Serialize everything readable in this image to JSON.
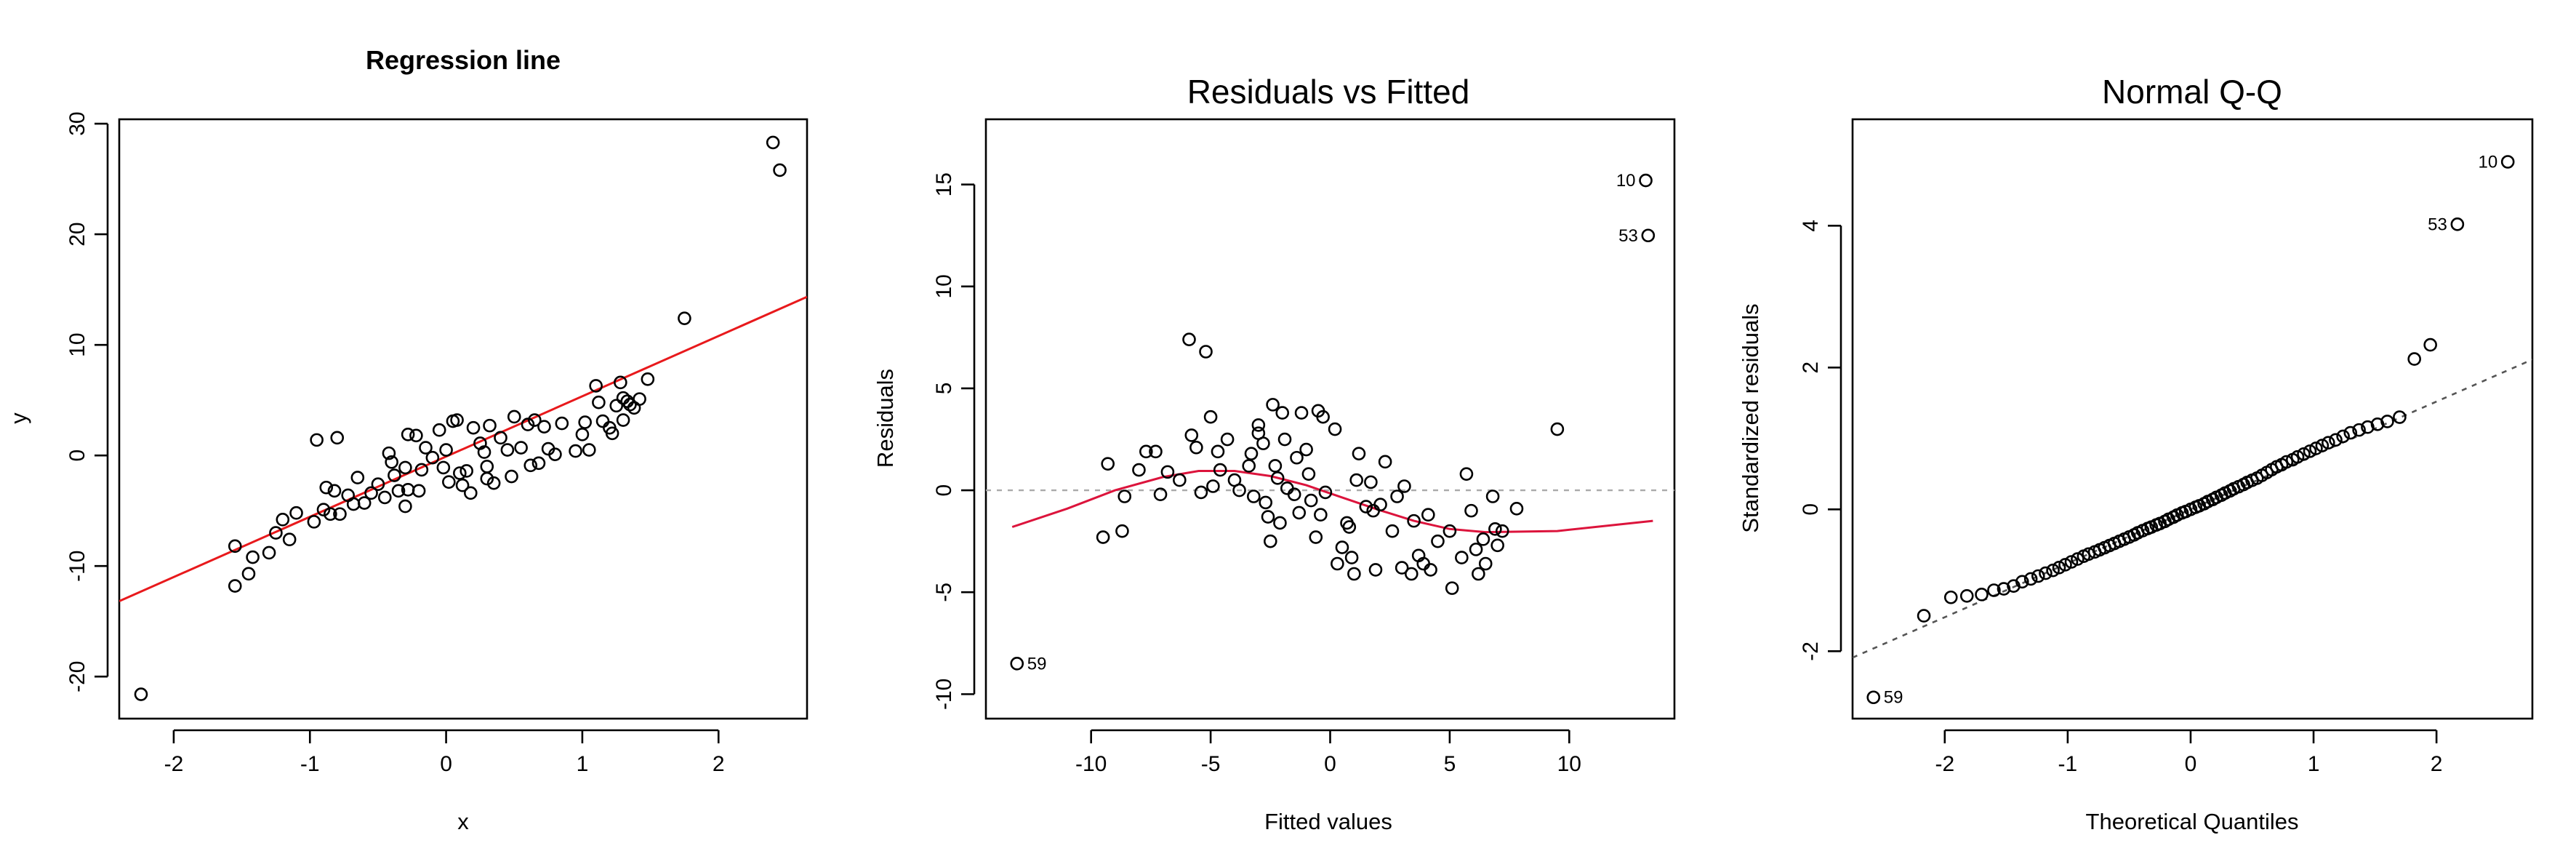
{
  "colors": {
    "regression_line": "#e8191c",
    "lowess_line": "#dc143c",
    "zero_ref": "#aaaaaa",
    "qq_ref": "#555555",
    "points": "#000000",
    "background": "#ffffff"
  },
  "chart_data": [
    {
      "type": "scatter",
      "title": "Regression line",
      "xlabel": "x",
      "ylabel": "y",
      "xlim": [
        -2.4,
        2.65
      ],
      "ylim": [
        -23.8,
        30.4
      ],
      "xticks": [
        -2,
        -1,
        0,
        1,
        2
      ],
      "yticks": [
        -20,
        -10,
        0,
        10,
        20,
        30
      ],
      "grid": false,
      "points": [
        [
          -2.24,
          -21.6
        ],
        [
          2.4,
          28.3
        ],
        [
          2.45,
          25.8
        ],
        [
          1.75,
          12.4
        ],
        [
          -1.55,
          -11.8
        ],
        [
          -1.45,
          -10.7
        ],
        [
          -1.55,
          -8.2
        ],
        [
          -1.42,
          -9.2
        ],
        [
          -1.3,
          -8.8
        ],
        [
          -1.25,
          -7.0
        ],
        [
          -1.2,
          -5.8
        ],
        [
          -1.15,
          -7.6
        ],
        [
          -1.1,
          -5.2
        ],
        [
          -0.97,
          -6.0
        ],
        [
          -0.9,
          -4.9
        ],
        [
          -0.85,
          -5.3
        ],
        [
          -0.88,
          -2.9
        ],
        [
          -0.82,
          -3.2
        ],
        [
          -0.78,
          -5.3
        ],
        [
          -0.95,
          1.4
        ],
        [
          -0.8,
          1.6
        ],
        [
          -0.72,
          -3.6
        ],
        [
          -0.65,
          -2.0
        ],
        [
          -0.6,
          -4.3
        ],
        [
          -0.55,
          -3.4
        ],
        [
          -0.5,
          -2.6
        ],
        [
          -0.45,
          -3.8
        ],
        [
          -0.4,
          -0.6
        ],
        [
          -0.42,
          0.2
        ],
        [
          -0.38,
          -1.8
        ],
        [
          -0.35,
          -3.2
        ],
        [
          -0.3,
          -4.6
        ],
        [
          -0.28,
          -3.1
        ],
        [
          -0.3,
          -1.1
        ],
        [
          -0.28,
          1.9
        ],
        [
          -0.22,
          1.8
        ],
        [
          -0.2,
          -3.2
        ],
        [
          -0.18,
          -1.3
        ],
        [
          -0.15,
          0.7
        ],
        [
          -0.1,
          -0.2
        ],
        [
          -0.05,
          2.3
        ],
        [
          -0.02,
          -1.1
        ],
        [
          0.0,
          0.5
        ],
        [
          0.02,
          -2.4
        ],
        [
          0.05,
          3.1
        ],
        [
          0.08,
          3.2
        ],
        [
          0.1,
          -1.6
        ],
        [
          0.12,
          -2.7
        ],
        [
          0.15,
          -1.4
        ],
        [
          0.18,
          -3.4
        ],
        [
          0.2,
          2.5
        ],
        [
          0.25,
          1.1
        ],
        [
          0.28,
          0.3
        ],
        [
          0.3,
          -1.0
        ],
        [
          0.3,
          -2.1
        ],
        [
          0.32,
          2.7
        ],
        [
          0.35,
          -2.5
        ],
        [
          0.4,
          1.6
        ],
        [
          0.45,
          0.5
        ],
        [
          0.48,
          -1.9
        ],
        [
          0.5,
          3.5
        ],
        [
          0.55,
          0.7
        ],
        [
          0.6,
          2.8
        ],
        [
          0.62,
          -0.9
        ],
        [
          0.65,
          3.2
        ],
        [
          0.68,
          -0.7
        ],
        [
          0.72,
          2.6
        ],
        [
          0.75,
          0.6
        ],
        [
          0.8,
          0.1
        ],
        [
          0.85,
          2.9
        ],
        [
          0.95,
          0.4
        ],
        [
          1.0,
          1.9
        ],
        [
          1.02,
          3.0
        ],
        [
          1.05,
          0.5
        ],
        [
          1.1,
          6.3
        ],
        [
          1.12,
          4.8
        ],
        [
          1.15,
          3.1
        ],
        [
          1.2,
          2.5
        ],
        [
          1.22,
          2.0
        ],
        [
          1.25,
          4.5
        ],
        [
          1.28,
          6.6
        ],
        [
          1.3,
          5.2
        ],
        [
          1.3,
          3.2
        ],
        [
          1.33,
          4.9
        ],
        [
          1.35,
          4.6
        ],
        [
          1.38,
          4.3
        ],
        [
          1.42,
          5.1
        ],
        [
          1.48,
          6.9
        ],
        [
          -0.68,
          -4.4
        ]
      ],
      "regression": {
        "intercept": -0.1,
        "slope": 5.45
      }
    },
    {
      "type": "scatter",
      "title": "Residuals vs Fitted",
      "xlabel": "Fitted values",
      "ylabel": "Residuals",
      "xlim": [
        -14.4,
        14.4
      ],
      "ylim": [
        -11.2,
        18.2
      ],
      "xticks": [
        -10,
        -5,
        0,
        5,
        10
      ],
      "yticks": [
        -10,
        -5,
        0,
        5,
        10,
        15
      ],
      "grid": false,
      "labels": [
        {
          "text": "10",
          "x": 13.2,
          "y": 15.2,
          "side": "left"
        },
        {
          "text": "53",
          "x": 13.3,
          "y": 12.5,
          "side": "left"
        },
        {
          "text": "59",
          "x": -13.1,
          "y": -8.5,
          "side": "right"
        }
      ],
      "points": [
        [
          13.2,
          15.2
        ],
        [
          13.3,
          12.5
        ],
        [
          -13.1,
          -8.5
        ],
        [
          9.5,
          3.0
        ],
        [
          -9.5,
          -2.3
        ],
        [
          -9.3,
          1.3
        ],
        [
          -8.7,
          -2.0
        ],
        [
          -8.6,
          -0.3
        ],
        [
          -8.0,
          1.0
        ],
        [
          -7.7,
          1.9
        ],
        [
          -7.3,
          1.9
        ],
        [
          -7.1,
          -0.2
        ],
        [
          -6.8,
          0.9
        ],
        [
          -6.3,
          0.5
        ],
        [
          -5.9,
          7.4
        ],
        [
          -5.8,
          2.7
        ],
        [
          -5.6,
          2.1
        ],
        [
          -5.4,
          -0.1
        ],
        [
          -5.2,
          6.8
        ],
        [
          -5.0,
          3.6
        ],
        [
          -4.9,
          0.2
        ],
        [
          -4.7,
          1.9
        ],
        [
          -4.6,
          1.0
        ],
        [
          -4.3,
          2.5
        ],
        [
          -4.0,
          0.5
        ],
        [
          -3.8,
          0.0
        ],
        [
          -3.4,
          1.2
        ],
        [
          -3.3,
          1.8
        ],
        [
          -3.2,
          -0.3
        ],
        [
          -3.0,
          3.2
        ],
        [
          -3.0,
          2.8
        ],
        [
          -2.8,
          2.3
        ],
        [
          -2.7,
          -0.6
        ],
        [
          -2.6,
          -1.3
        ],
        [
          -2.5,
          -2.5
        ],
        [
          -2.4,
          4.2
        ],
        [
          -2.3,
          1.2
        ],
        [
          -2.2,
          0.6
        ],
        [
          -2.1,
          -1.6
        ],
        [
          -2.0,
          3.8
        ],
        [
          -1.9,
          2.5
        ],
        [
          -1.8,
          0.1
        ],
        [
          -1.5,
          -0.2
        ],
        [
          -1.4,
          1.6
        ],
        [
          -1.3,
          -1.1
        ],
        [
          -1.2,
          3.8
        ],
        [
          -1.0,
          2.0
        ],
        [
          -0.9,
          0.8
        ],
        [
          -0.8,
          -0.5
        ],
        [
          -0.6,
          -2.3
        ],
        [
          -0.5,
          3.9
        ],
        [
          -0.4,
          -1.2
        ],
        [
          -0.3,
          3.6
        ],
        [
          -0.2,
          -0.1
        ],
        [
          0.2,
          3.0
        ],
        [
          0.3,
          -3.6
        ],
        [
          0.5,
          -2.8
        ],
        [
          0.7,
          -1.6
        ],
        [
          0.8,
          -1.8
        ],
        [
          0.9,
          -3.3
        ],
        [
          1.0,
          -4.1
        ],
        [
          1.1,
          0.5
        ],
        [
          1.2,
          1.8
        ],
        [
          1.5,
          -0.8
        ],
        [
          1.7,
          0.4
        ],
        [
          1.8,
          -1.0
        ],
        [
          1.9,
          -3.9
        ],
        [
          2.1,
          -0.7
        ],
        [
          2.3,
          1.4
        ],
        [
          2.6,
          -2.0
        ],
        [
          2.8,
          -0.3
        ],
        [
          3.0,
          -3.8
        ],
        [
          3.1,
          0.2
        ],
        [
          3.4,
          -4.1
        ],
        [
          3.5,
          -1.5
        ],
        [
          3.7,
          -3.2
        ],
        [
          3.9,
          -3.6
        ],
        [
          4.1,
          -1.2
        ],
        [
          4.2,
          -3.9
        ],
        [
          4.5,
          -2.5
        ],
        [
          5.0,
          -2.0
        ],
        [
          5.1,
          -4.8
        ],
        [
          5.5,
          -3.3
        ],
        [
          5.7,
          0.8
        ],
        [
          5.9,
          -1.0
        ],
        [
          6.1,
          -2.9
        ],
        [
          6.2,
          -4.1
        ],
        [
          6.5,
          -3.6
        ],
        [
          6.8,
          -0.3
        ],
        [
          6.9,
          -1.9
        ],
        [
          7.0,
          -2.7
        ],
        [
          7.2,
          -2.0
        ],
        [
          7.8,
          -0.9
        ],
        [
          6.4,
          -2.4
        ]
      ],
      "lowess": [
        [
          -13.3,
          -1.8
        ],
        [
          -11.0,
          -0.9
        ],
        [
          -9.0,
          0.0
        ],
        [
          -7.0,
          0.65
        ],
        [
          -5.5,
          0.95
        ],
        [
          -4.0,
          0.95
        ],
        [
          -2.5,
          0.7
        ],
        [
          -1.0,
          0.25
        ],
        [
          0.5,
          -0.35
        ],
        [
          2.0,
          -0.95
        ],
        [
          3.5,
          -1.5
        ],
        [
          5.0,
          -1.9
        ],
        [
          6.5,
          -2.05
        ],
        [
          9.5,
          -2.0
        ],
        [
          13.5,
          -1.5
        ]
      ]
    },
    {
      "type": "scatter",
      "title": "Normal Q-Q",
      "xlabel": "Theoretical Quantiles",
      "ylabel": "Standardized residuals",
      "xlim": [
        -2.75,
        2.78
      ],
      "ylim": [
        -2.95,
        5.5
      ],
      "xticks": [
        -2,
        -1,
        0,
        1,
        2
      ],
      "yticks": [
        -2,
        0,
        2,
        4
      ],
      "grid": false,
      "labels": [
        {
          "text": "10",
          "x": 2.58,
          "y": 4.9,
          "side": "left"
        },
        {
          "text": "53",
          "x": 2.17,
          "y": 4.02,
          "side": "left"
        },
        {
          "text": "59",
          "x": -2.58,
          "y": -2.65,
          "side": "right"
        }
      ],
      "ref_line": {
        "intercept": 0.0,
        "slope": 0.76
      },
      "points": [
        [
          -2.58,
          -2.65
        ],
        [
          2.58,
          4.9
        ],
        [
          2.17,
          4.02
        ],
        [
          1.95,
          2.32
        ],
        [
          1.82,
          2.12
        ],
        [
          -2.17,
          -1.5
        ],
        [
          -1.95,
          -1.24
        ],
        [
          -1.82,
          -1.22
        ],
        [
          -1.7,
          -1.2
        ],
        [
          -1.6,
          -1.14
        ],
        [
          -1.52,
          -1.12
        ],
        [
          -1.44,
          -1.08
        ],
        [
          -1.37,
          -1.02
        ],
        [
          -1.3,
          -0.98
        ],
        [
          -1.24,
          -0.94
        ],
        [
          -1.18,
          -0.9
        ],
        [
          -1.12,
          -0.86
        ],
        [
          -1.07,
          -0.82
        ],
        [
          -1.02,
          -0.78
        ],
        [
          -0.97,
          -0.74
        ],
        [
          -0.92,
          -0.7
        ],
        [
          -0.87,
          -0.66
        ],
        [
          -0.83,
          -0.63
        ],
        [
          -0.78,
          -0.6
        ],
        [
          -0.74,
          -0.57
        ],
        [
          -0.7,
          -0.54
        ],
        [
          -0.66,
          -0.51
        ],
        [
          -0.62,
          -0.48
        ],
        [
          -0.58,
          -0.45
        ],
        [
          -0.54,
          -0.42
        ],
        [
          -0.5,
          -0.39
        ],
        [
          -0.46,
          -0.36
        ],
        [
          -0.43,
          -0.33
        ],
        [
          -0.39,
          -0.3
        ],
        [
          -0.35,
          -0.27
        ],
        [
          -0.32,
          -0.25
        ],
        [
          -0.28,
          -0.22
        ],
        [
          -0.25,
          -0.2
        ],
        [
          -0.21,
          -0.17
        ],
        [
          -0.18,
          -0.14
        ],
        [
          -0.14,
          -0.11
        ],
        [
          -0.11,
          -0.08
        ],
        [
          -0.07,
          -0.05
        ],
        [
          -0.04,
          -0.03
        ],
        [
          0.0,
          0.0
        ],
        [
          0.04,
          0.03
        ],
        [
          0.07,
          0.05
        ],
        [
          0.11,
          0.08
        ],
        [
          0.14,
          0.11
        ],
        [
          0.18,
          0.14
        ],
        [
          0.21,
          0.17
        ],
        [
          0.25,
          0.2
        ],
        [
          0.28,
          0.23
        ],
        [
          0.32,
          0.26
        ],
        [
          0.35,
          0.29
        ],
        [
          0.39,
          0.32
        ],
        [
          0.43,
          0.35
        ],
        [
          0.46,
          0.38
        ],
        [
          0.5,
          0.41
        ],
        [
          0.54,
          0.44
        ],
        [
          0.58,
          0.48
        ],
        [
          0.62,
          0.52
        ],
        [
          0.66,
          0.56
        ],
        [
          0.7,
          0.6
        ],
        [
          0.74,
          0.63
        ],
        [
          0.78,
          0.67
        ],
        [
          0.83,
          0.7
        ],
        [
          0.87,
          0.74
        ],
        [
          0.92,
          0.78
        ],
        [
          0.97,
          0.82
        ],
        [
          1.02,
          0.86
        ],
        [
          1.07,
          0.9
        ],
        [
          1.12,
          0.94
        ],
        [
          1.18,
          0.98
        ],
        [
          1.24,
          1.03
        ],
        [
          1.3,
          1.08
        ],
        [
          1.37,
          1.12
        ],
        [
          1.44,
          1.16
        ],
        [
          1.52,
          1.2
        ],
        [
          1.6,
          1.24
        ],
        [
          1.7,
          1.3
        ]
      ]
    }
  ]
}
